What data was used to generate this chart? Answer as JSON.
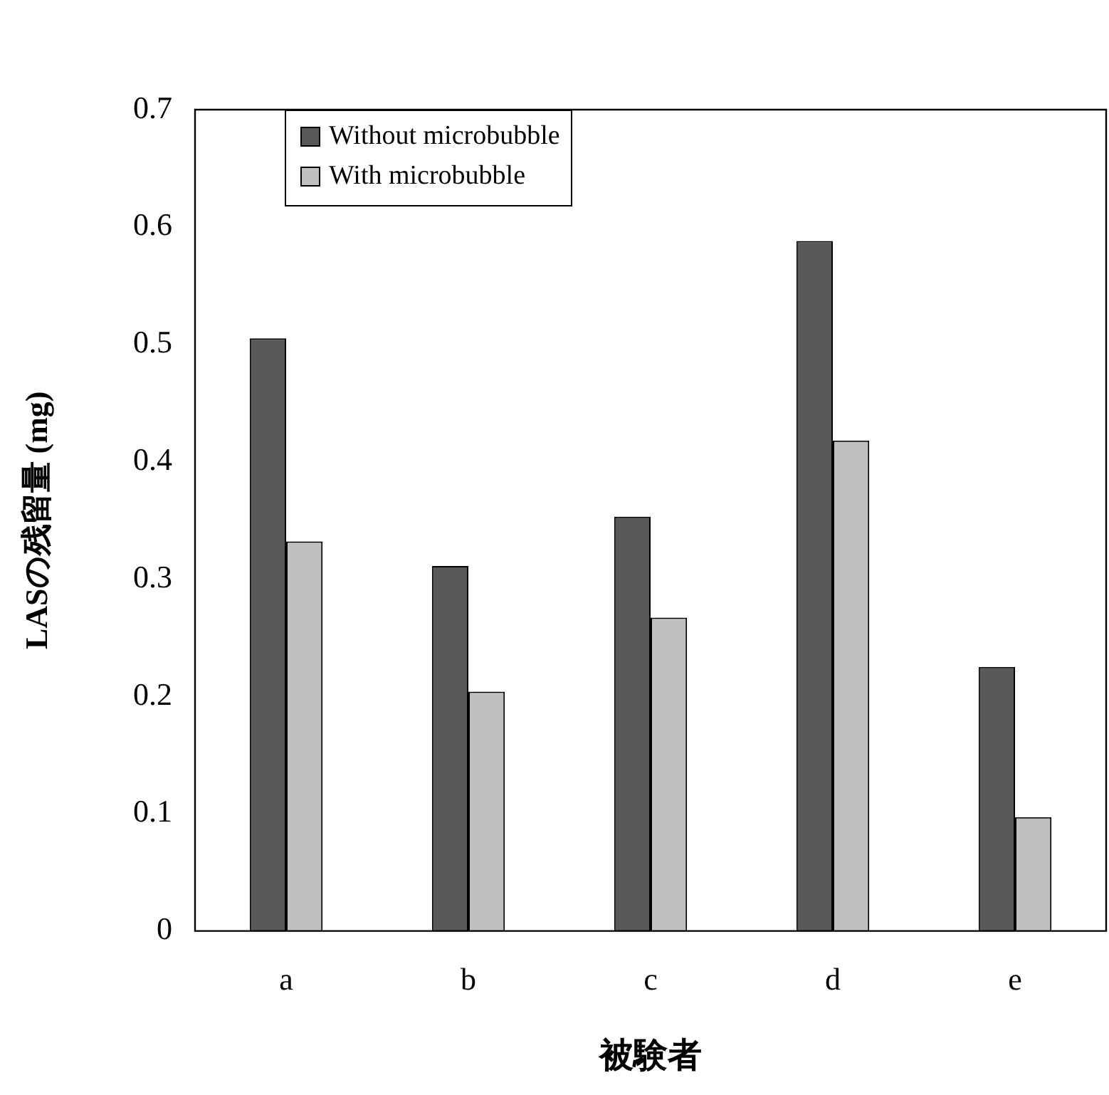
{
  "chart_data": {
    "type": "bar",
    "xlabel": "被験者",
    "ylabel": "LASの残留量 (mg)",
    "categories": [
      "a",
      "b",
      "c",
      "d",
      "e"
    ],
    "series": [
      {
        "name": "Without microbubble",
        "color": "#595959",
        "values": [
          0.505,
          0.311,
          0.353,
          0.588,
          0.225
        ]
      },
      {
        "name": "With microbubble",
        "color": "#bfbfbf",
        "values": [
          0.332,
          0.204,
          0.267,
          0.418,
          0.097
        ]
      }
    ],
    "ylim": [
      0,
      0.7
    ],
    "yticks": [
      0,
      0.1,
      0.2,
      0.3,
      0.4,
      0.5,
      0.6,
      0.7
    ],
    "grid": false,
    "legend": "top left"
  }
}
